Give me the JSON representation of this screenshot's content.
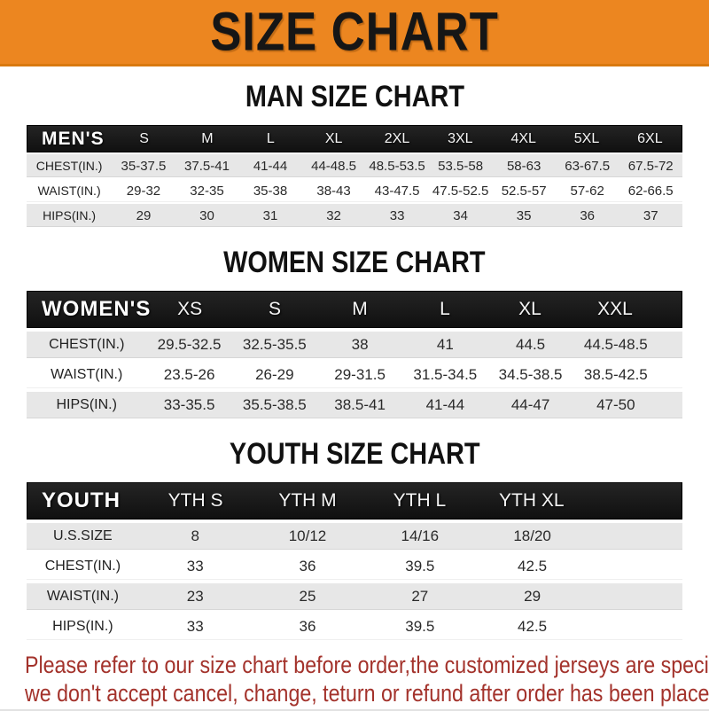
{
  "banner": {
    "title": "SIZE CHART"
  },
  "sections": [
    {
      "title": "MAN SIZE CHART",
      "table": {
        "header_label": "MEN'S",
        "columns": [
          "S",
          "M",
          "L",
          "XL",
          "2XL",
          "3XL",
          "4XL",
          "5XL",
          "6XL"
        ],
        "rows": [
          {
            "label": "CHEST(IN.)",
            "values": [
              "35-37.5",
              "37.5-41",
              "41-44",
              "44-48.5",
              "48.5-53.5",
              "53.5-58",
              "58-63",
              "63-67.5",
              "67.5-72"
            ]
          },
          {
            "label": "WAIST(IN.)",
            "values": [
              "29-32",
              "32-35",
              "35-38",
              "38-43",
              "43-47.5",
              "47.5-52.5",
              "52.5-57",
              "57-62",
              "62-66.5"
            ]
          },
          {
            "label": "HIPS(IN.)",
            "values": [
              "29",
              "30",
              "31",
              "32",
              "33",
              "34",
              "35",
              "36",
              "37"
            ]
          }
        ]
      }
    },
    {
      "title": "WOMEN SIZE CHART",
      "table": {
        "header_label": "WOMEN'S",
        "columns": [
          "XS",
          "S",
          "M",
          "L",
          "XL",
          "XXL"
        ],
        "rows": [
          {
            "label": "CHEST(IN.)",
            "values": [
              "29.5-32.5",
              "32.5-35.5",
              "38",
              "41",
              "44.5",
              "44.5-48.5"
            ]
          },
          {
            "label": "WAIST(IN.)",
            "values": [
              "23.5-26",
              "26-29",
              "29-31.5",
              "31.5-34.5",
              "34.5-38.5",
              "38.5-42.5"
            ]
          },
          {
            "label": "HIPS(IN.)",
            "values": [
              "33-35.5",
              "35.5-38.5",
              "38.5-41",
              "41-44",
              "44-47",
              "47-50"
            ]
          }
        ]
      }
    },
    {
      "title": "YOUTH SIZE CHART",
      "table": {
        "header_label": "YOUTH",
        "columns": [
          "YTH S",
          "YTH M",
          "YTH L",
          "YTH XL"
        ],
        "rows": [
          {
            "label": "U.S.SIZE",
            "values": [
              "8",
              "10/12",
              "14/16",
              "18/20"
            ]
          },
          {
            "label": "CHEST(IN.)",
            "values": [
              "33",
              "36",
              "39.5",
              "42.5"
            ]
          },
          {
            "label": "WAIST(IN.)",
            "values": [
              "23",
              "25",
              "27",
              "29"
            ]
          },
          {
            "label": "HIPS(IN.)",
            "values": [
              "33",
              "36",
              "39.5",
              "42.5"
            ]
          }
        ]
      }
    }
  ],
  "notice": {
    "lines": [
      "Please refer to our size chart before order,the customized jerseys are special products,",
      "we don't accept cancel, change, teturn or refund after order has been placed!"
    ]
  },
  "colors": {
    "banner_bg": "#ec8620",
    "banner_text": "#161616",
    "table_header_bg": "#1a1a1a",
    "table_header_text": "#ffffff",
    "row_gray": "#e7e7e7",
    "row_white": "#ffffff",
    "notice_text": "#a3322b"
  }
}
